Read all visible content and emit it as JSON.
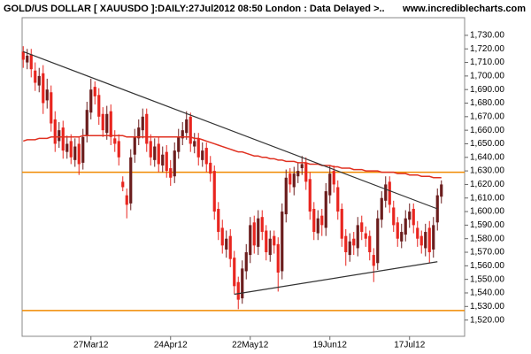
{
  "chart_data": {
    "type": "candlestick",
    "title": "GOLD/US DOLLAR [ XAUUSDO ]:DAILY:27Jul2012 08:50 London : Data Delayed >..",
    "source": "www.incrediblecharts.com",
    "categories": [
      null,
      null,
      null,
      null,
      null,
      null,
      null,
      null,
      null,
      null,
      null,
      null,
      null,
      null,
      null,
      null,
      null,
      "27Mar12",
      null,
      null,
      null,
      null,
      null,
      null,
      null,
      null,
      null,
      null,
      null,
      null,
      null,
      null,
      null,
      null,
      null,
      null,
      null,
      "24Apr12",
      null,
      null,
      null,
      null,
      null,
      null,
      null,
      null,
      null,
      null,
      null,
      null,
      null,
      null,
      null,
      null,
      null,
      null,
      null,
      "22May12",
      null,
      null,
      null,
      null,
      null,
      null,
      null,
      null,
      null,
      null,
      null,
      null,
      null,
      null,
      null,
      null,
      null,
      null,
      null,
      "19Jun12",
      null,
      null,
      null,
      null,
      null,
      null,
      null,
      null,
      null,
      null,
      null,
      null,
      null,
      null,
      null,
      null,
      null,
      null,
      null,
      "17Jul12",
      null,
      null,
      null,
      null,
      null,
      null,
      null,
      null
    ],
    "open": [
      1718,
      1710,
      1716,
      1704,
      1693,
      1702,
      1682,
      1688,
      1668,
      1652,
      1662,
      1644,
      1652,
      1638,
      1650,
      1636,
      1656,
      1673,
      1692,
      1686,
      1672,
      1658,
      1674,
      1654,
      1652,
      1622,
      1612,
      1606,
      1642,
      1654,
      1660,
      1672,
      1652,
      1638,
      1650,
      1634,
      1644,
      1632,
      1626,
      1644,
      1654,
      1658,
      1670,
      1648,
      1654,
      1638,
      1647,
      1636,
      1630,
      1602,
      1588,
      1572,
      1582,
      1566,
      1548,
      1536,
      1556,
      1568,
      1592,
      1574,
      1596,
      1586,
      1568,
      1582,
      1576,
      1556,
      1598,
      1628,
      1618,
      1626,
      1632,
      1636,
      1624,
      1602,
      1584,
      1597,
      1588,
      1612,
      1630,
      1618,
      1602,
      1582,
      1568,
      1580,
      1573,
      1592,
      1584,
      1582,
      1568,
      1562,
      1594,
      1608,
      1622,
      1603,
      1592,
      1578,
      1583,
      1594,
      1602,
      1588,
      1582,
      1573,
      1588,
      1572,
      1592,
      1611
    ],
    "high": [
      1722,
      1720,
      1720,
      1710,
      1706,
      1708,
      1698,
      1693,
      1674,
      1666,
      1667,
      1656,
      1657,
      1654,
      1655,
      1661,
      1681,
      1698,
      1696,
      1691,
      1677,
      1678,
      1679,
      1660,
      1657,
      1626,
      1617,
      1646,
      1661,
      1668,
      1676,
      1676,
      1657,
      1654,
      1655,
      1648,
      1649,
      1638,
      1651,
      1661,
      1666,
      1674,
      1673,
      1658,
      1658,
      1651,
      1651,
      1641,
      1634,
      1607,
      1594,
      1586,
      1587,
      1571,
      1552,
      1564,
      1576,
      1596,
      1597,
      1601,
      1601,
      1590,
      1586,
      1586,
      1581,
      1606,
      1631,
      1632,
      1633,
      1636,
      1641,
      1640,
      1629,
      1607,
      1601,
      1602,
      1621,
      1634,
      1634,
      1623,
      1606,
      1587,
      1584,
      1585,
      1596,
      1597,
      1589,
      1586,
      1573,
      1601,
      1615,
      1626,
      1626,
      1608,
      1596,
      1591,
      1601,
      1606,
      1606,
      1593,
      1586,
      1591,
      1593,
      1596,
      1617,
      1623
    ],
    "low": [
      1706,
      1705,
      1699,
      1689,
      1688,
      1672,
      1676,
      1659,
      1644,
      1647,
      1639,
      1639,
      1635,
      1633,
      1627,
      1631,
      1651,
      1668,
      1679,
      1664,
      1655,
      1653,
      1649,
      1644,
      1634,
      1615,
      1595,
      1601,
      1636,
      1649,
      1654,
      1644,
      1634,
      1633,
      1629,
      1629,
      1625,
      1619,
      1621,
      1639,
      1649,
      1653,
      1644,
      1643,
      1634,
      1633,
      1629,
      1622,
      1594,
      1579,
      1569,
      1566,
      1559,
      1539,
      1528,
      1532,
      1550,
      1562,
      1569,
      1568,
      1579,
      1564,
      1563,
      1569,
      1541,
      1550,
      1592,
      1614,
      1612,
      1621,
      1627,
      1616,
      1594,
      1579,
      1579,
      1582,
      1582,
      1606,
      1614,
      1594,
      1574,
      1560,
      1563,
      1568,
      1567,
      1579,
      1574,
      1564,
      1548,
      1557,
      1588,
      1603,
      1599,
      1585,
      1574,
      1573,
      1578,
      1588,
      1584,
      1574,
      1569,
      1567,
      1562,
      1566,
      1586,
      1606
    ],
    "close": [
      1712,
      1715,
      1705,
      1695,
      1700,
      1680,
      1690,
      1665,
      1650,
      1660,
      1645,
      1650,
      1640,
      1648,
      1635,
      1655,
      1675,
      1690,
      1685,
      1670,
      1660,
      1672,
      1655,
      1650,
      1640,
      1618,
      1605,
      1640,
      1655,
      1662,
      1670,
      1650,
      1640,
      1648,
      1635,
      1642,
      1630,
      1625,
      1645,
      1655,
      1660,
      1668,
      1650,
      1652,
      1640,
      1645,
      1635,
      1628,
      1600,
      1585,
      1575,
      1580,
      1565,
      1545,
      1535,
      1558,
      1570,
      1590,
      1575,
      1595,
      1585,
      1570,
      1580,
      1575,
      1555,
      1600,
      1625,
      1620,
      1628,
      1630,
      1635,
      1622,
      1600,
      1585,
      1595,
      1590,
      1615,
      1628,
      1620,
      1600,
      1580,
      1570,
      1578,
      1575,
      1590,
      1585,
      1580,
      1570,
      1560,
      1595,
      1610,
      1620,
      1605,
      1590,
      1580,
      1585,
      1595,
      1600,
      1590,
      1580,
      1575,
      1585,
      1570,
      1590,
      1612,
      1620
    ],
    "up_color": "#6b1d1d",
    "down_color": "#e8251f",
    "moving_average": {
      "color": "#e03020",
      "values": [
        1652,
        1653,
        1653,
        1653,
        1654,
        1654,
        1654,
        1655,
        1655,
        1655,
        1655,
        1655,
        1655,
        1655,
        1655,
        1656,
        1656,
        1656,
        1656,
        1656,
        1656,
        1656,
        1656,
        1656,
        1656,
        1656,
        1655,
        1655,
        1655,
        1655,
        1655,
        1655,
        1655,
        1655,
        1655,
        1655,
        1655,
        1655,
        1655,
        1655,
        1655,
        1655,
        1655,
        1654,
        1654,
        1653,
        1652,
        1651,
        1650,
        1649,
        1648,
        1647,
        1646,
        1645,
        1644,
        1644,
        1643,
        1642,
        1641,
        1641,
        1640,
        1640,
        1639,
        1639,
        1638,
        1638,
        1637,
        1637,
        1637,
        1636,
        1636,
        1636,
        1635,
        1635,
        1635,
        1634,
        1634,
        1634,
        1633,
        1633,
        1632,
        1632,
        1632,
        1631,
        1631,
        1631,
        1630,
        1630,
        1630,
        1630,
        1629,
        1629,
        1629,
        1629,
        1628,
        1628,
        1628,
        1627,
        1627,
        1627,
        1626,
        1626,
        1626,
        1625,
        1625,
        1625
      ]
    },
    "trend_lines": [
      {
        "color": "#333333",
        "x": [
          0,
          104
        ],
        "y": [
          1718,
          1602
        ]
      },
      {
        "color": "#333333",
        "x": [
          53,
          104
        ],
        "y": [
          1539,
          1563
        ]
      }
    ],
    "levels": {
      "color": "#f08a00",
      "values": [
        1629,
        1527
      ]
    },
    "ylim": [
      1508,
      1743
    ],
    "yticks": [
      {
        "value": 1520,
        "label": "1,520.00"
      },
      {
        "value": 1530,
        "label": "1,530.00"
      },
      {
        "value": 1540,
        "label": "1,540.00"
      },
      {
        "value": 1550,
        "label": "1,550.00"
      },
      {
        "value": 1560,
        "label": "1,560.00"
      },
      {
        "value": 1570,
        "label": "1,570.00"
      },
      {
        "value": 1580,
        "label": "1,580.00"
      },
      {
        "value": 1590,
        "label": "1,590.00"
      },
      {
        "value": 1600,
        "label": "1,600.00"
      },
      {
        "value": 1610,
        "label": "1,610.00"
      },
      {
        "value": 1620,
        "label": "1,620.00"
      },
      {
        "value": 1630,
        "label": "1,630.00"
      },
      {
        "value": 1640,
        "label": "1,640.00"
      },
      {
        "value": 1650,
        "label": "1,650.00"
      },
      {
        "value": 1660,
        "label": "1,660.00"
      },
      {
        "value": 1670,
        "label": "1,670.00"
      },
      {
        "value": 1680,
        "label": "1,680.00"
      },
      {
        "value": 1690,
        "label": "1,690.00"
      },
      {
        "value": 1700,
        "label": "1,700.00"
      },
      {
        "value": 1710,
        "label": "1,710.00"
      },
      {
        "value": 1720,
        "label": "1,720.00"
      },
      {
        "value": 1730,
        "label": "1,730.00"
      }
    ],
    "grid": false
  }
}
